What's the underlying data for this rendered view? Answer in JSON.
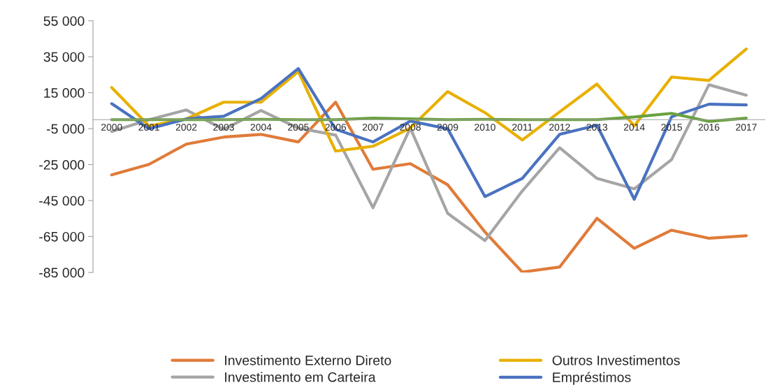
{
  "chart_data": {
    "type": "line",
    "categories": [
      "2000",
      "2001",
      "2002",
      "2003",
      "2004",
      "2005",
      "2006",
      "2007",
      "2008",
      "2009",
      "2010",
      "2011",
      "2012",
      "2013",
      "2014",
      "2015",
      "2016",
      "2017"
    ],
    "series": [
      {
        "name": "Investimento Externo Direto",
        "color": "#e07b39",
        "values": [
          -30700,
          -24900,
          -13600,
          -9700,
          -8200,
          -12400,
          9700,
          -27600,
          -24500,
          -36200,
          -62500,
          -84800,
          -82000,
          -54900,
          -71600,
          -61500,
          -66000,
          -64600
        ]
      },
      {
        "name": "Investimento em Carteira",
        "color": "#a5a5a5",
        "values": [
          -6600,
          0,
          5400,
          -5400,
          5100,
          -4700,
          -8600,
          -49000,
          -4700,
          -52100,
          -67300,
          -39700,
          -15600,
          -32700,
          -38500,
          -22200,
          19400,
          13600
        ]
      },
      {
        "name": "Outros Investimentos",
        "color": "#e8b000",
        "values": [
          17900,
          -3500,
          400,
          9700,
          9700,
          26800,
          -17500,
          -14800,
          -4700,
          15600,
          3900,
          -11300,
          4300,
          19800,
          -3500,
          23700,
          21800,
          39300
        ]
      },
      {
        "name": "Empréstimos",
        "color": "#4a72c0",
        "values": [
          8900,
          -5100,
          400,
          1900,
          11700,
          28400,
          -5400,
          -12400,
          -800,
          -5100,
          -42800,
          -32700,
          -8200,
          -3100,
          -44300,
          1600,
          8600,
          8200
        ]
      },
      {
        "color": "#6aa13e",
        "values": [
          0,
          0,
          0,
          0,
          200,
          0,
          0,
          800,
          400,
          0,
          200,
          0,
          0,
          0,
          1500,
          3500,
          -1000,
          800
        ]
      }
    ],
    "ylim": [
      -85000,
      55000
    ],
    "yticks": [
      {
        "value": -85000,
        "label": "-85 000"
      },
      {
        "value": -65000,
        "label": "-65 000"
      },
      {
        "value": -45000,
        "label": "-45 000"
      },
      {
        "value": -25000,
        "label": "-25 000"
      },
      {
        "value": -5000,
        "label": "-5 000"
      },
      {
        "value": 15000,
        "label": "15 000"
      },
      {
        "value": 35000,
        "label": "35 000"
      },
      {
        "value": 55000,
        "label": "55 000"
      }
    ],
    "legend": "bottom",
    "marker": "none",
    "line_style": "solid"
  }
}
